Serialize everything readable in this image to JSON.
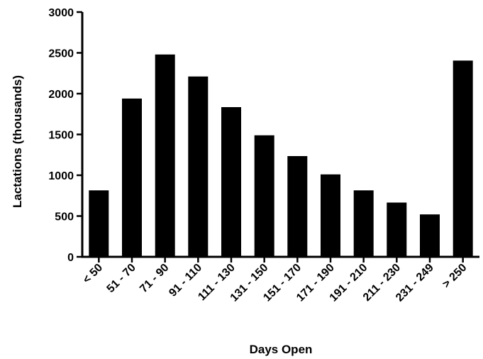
{
  "chart_data": {
    "type": "bar",
    "title": "",
    "xlabel": "Days Open",
    "ylabel": "Lactations (thousands)",
    "ylim": [
      0,
      3000
    ],
    "yticks": [
      0,
      500,
      1000,
      1500,
      2000,
      2500,
      3000
    ],
    "grid": false,
    "legend": "none",
    "bar_color": "#000000",
    "categories": [
      "< 50",
      "51 - 70",
      "71 - 90",
      "91 - 110",
      "111 - 130",
      "131 - 150",
      "151 - 170",
      "171 - 190",
      "191 - 210",
      "211 - 230",
      "231 - 249",
      "> 250"
    ],
    "values": [
      815,
      1940,
      2480,
      2210,
      1835,
      1490,
      1235,
      1010,
      815,
      665,
      520,
      2405
    ]
  }
}
